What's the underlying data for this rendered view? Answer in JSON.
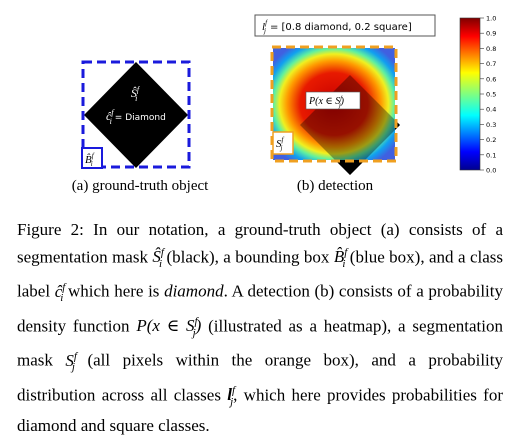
{
  "figure": {
    "panel_a": {
      "caption": "(a) ground-truth object",
      "mask_label": "Ŝ",
      "mask_sup": "f",
      "mask_sub": "i",
      "class_label_sym": "ĉ",
      "class_label_sup": "f",
      "class_label_sub": "i",
      "class_label_text": "= Diamond",
      "box_label": "B̂",
      "box_sup": "f",
      "box_sub": "i",
      "colors": {
        "mask": "#000000",
        "box": "#1a1adc"
      }
    },
    "panel_b": {
      "caption": "(b) detection",
      "label_vector_sym": "l",
      "label_vector_sup": "f",
      "label_vector_sub": "j",
      "label_vector_text": "= [0.8 diamond, 0.2 square]",
      "density_label": "P(x ∈ S",
      "density_sup": "f",
      "density_sub": "j",
      "density_close": ")",
      "seg_label": "S",
      "seg_sup": "f",
      "seg_sub": "j",
      "colors": {
        "seg_box": "#f0a020",
        "mask": "#000000"
      },
      "colorbar": {
        "ticks": [
          "1.0",
          "0.9",
          "0.8",
          "0.7",
          "0.6",
          "0.5",
          "0.4",
          "0.3",
          "0.2",
          "0.1",
          "0.0"
        ],
        "range": [
          0,
          1
        ],
        "colormap": "jet"
      }
    }
  },
  "caption": {
    "p1": "Figure 2: In our notation, a ground-truth object (a) consists of a segmentation mask ",
    "mask_sym": "Ŝ",
    "mask_sup": "f",
    "mask_sub": "i",
    "p2": " (black), a bounding box ",
    "box_sym": "B̂",
    "box_sup": "f",
    "box_sub": "i",
    "p3": " (blue box), and a class label ",
    "cls_sym": "ĉ",
    "cls_sup": "f",
    "cls_sub": "i",
    "p4": " which here is ",
    "diamond_word": "diamond",
    "p5": ". A detection (b) consists of a probability density function ",
    "pdf_text": "P(x ∈ S",
    "pdf_sup": "f",
    "pdf_sub": "j",
    "pdf_close": ")",
    "p6": " (illustrated as a heatmap), a segmentation mask ",
    "seg_sym": "S",
    "seg_sup": "f",
    "seg_sub": "j",
    "p7": " (all pixels within the orange box), and a probability distribution across all classes ",
    "vec_sym": "l",
    "vec_sup": "f",
    "vec_sub": "j",
    "p8": ", which here provides probabilities for diamond and square classes."
  }
}
